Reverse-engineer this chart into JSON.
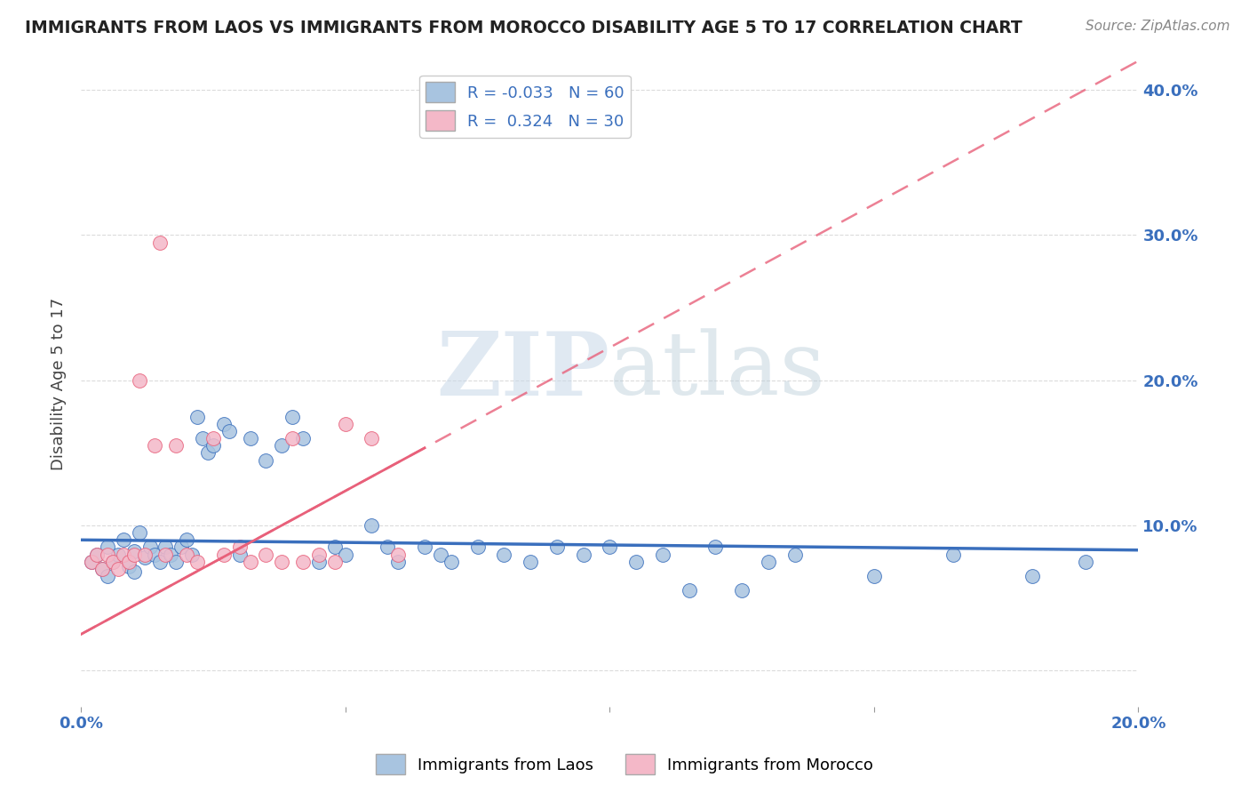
{
  "title": "IMMIGRANTS FROM LAOS VS IMMIGRANTS FROM MOROCCO DISABILITY AGE 5 TO 17 CORRELATION CHART",
  "source": "Source: ZipAtlas.com",
  "ylabel": "Disability Age 5 to 17",
  "legend_label_1": "Immigrants from Laos",
  "legend_label_2": "Immigrants from Morocco",
  "r_laos": "-0.033",
  "n_laos": "60",
  "r_morocco": "0.324",
  "n_morocco": "30",
  "xlim": [
    0.0,
    0.2
  ],
  "ylim": [
    -0.025,
    0.42
  ],
  "color_laos": "#a8c4e0",
  "color_morocco": "#f4b8c8",
  "line_color_laos": "#3a6fbd",
  "line_color_morocco": "#e8607a",
  "laos_x": [
    0.002,
    0.003,
    0.004,
    0.005,
    0.005,
    0.006,
    0.007,
    0.008,
    0.009,
    0.01,
    0.01,
    0.011,
    0.012,
    0.013,
    0.014,
    0.015,
    0.016,
    0.017,
    0.018,
    0.019,
    0.02,
    0.021,
    0.022,
    0.023,
    0.024,
    0.025,
    0.027,
    0.028,
    0.03,
    0.032,
    0.035,
    0.038,
    0.04,
    0.042,
    0.045,
    0.048,
    0.05,
    0.055,
    0.058,
    0.06,
    0.065,
    0.068,
    0.07,
    0.075,
    0.08,
    0.085,
    0.09,
    0.095,
    0.1,
    0.105,
    0.11,
    0.115,
    0.12,
    0.125,
    0.13,
    0.135,
    0.15,
    0.165,
    0.18,
    0.19
  ],
  "laos_y": [
    0.075,
    0.08,
    0.07,
    0.065,
    0.085,
    0.075,
    0.08,
    0.09,
    0.072,
    0.068,
    0.082,
    0.095,
    0.078,
    0.085,
    0.08,
    0.075,
    0.085,
    0.08,
    0.075,
    0.085,
    0.09,
    0.08,
    0.175,
    0.16,
    0.15,
    0.155,
    0.17,
    0.165,
    0.08,
    0.16,
    0.145,
    0.155,
    0.175,
    0.16,
    0.075,
    0.085,
    0.08,
    0.1,
    0.085,
    0.075,
    0.085,
    0.08,
    0.075,
    0.085,
    0.08,
    0.075,
    0.085,
    0.08,
    0.085,
    0.075,
    0.08,
    0.055,
    0.085,
    0.055,
    0.075,
    0.08,
    0.065,
    0.08,
    0.065,
    0.075
  ],
  "morocco_x": [
    0.002,
    0.003,
    0.004,
    0.005,
    0.006,
    0.007,
    0.008,
    0.009,
    0.01,
    0.011,
    0.012,
    0.014,
    0.015,
    0.016,
    0.018,
    0.02,
    0.022,
    0.025,
    0.027,
    0.03,
    0.032,
    0.035,
    0.038,
    0.04,
    0.042,
    0.045,
    0.048,
    0.05,
    0.055,
    0.06
  ],
  "morocco_y": [
    0.075,
    0.08,
    0.07,
    0.08,
    0.075,
    0.07,
    0.08,
    0.075,
    0.08,
    0.2,
    0.08,
    0.155,
    0.295,
    0.08,
    0.155,
    0.08,
    0.075,
    0.16,
    0.08,
    0.085,
    0.075,
    0.08,
    0.075,
    0.16,
    0.075,
    0.08,
    0.075,
    0.17,
    0.16,
    0.08
  ]
}
